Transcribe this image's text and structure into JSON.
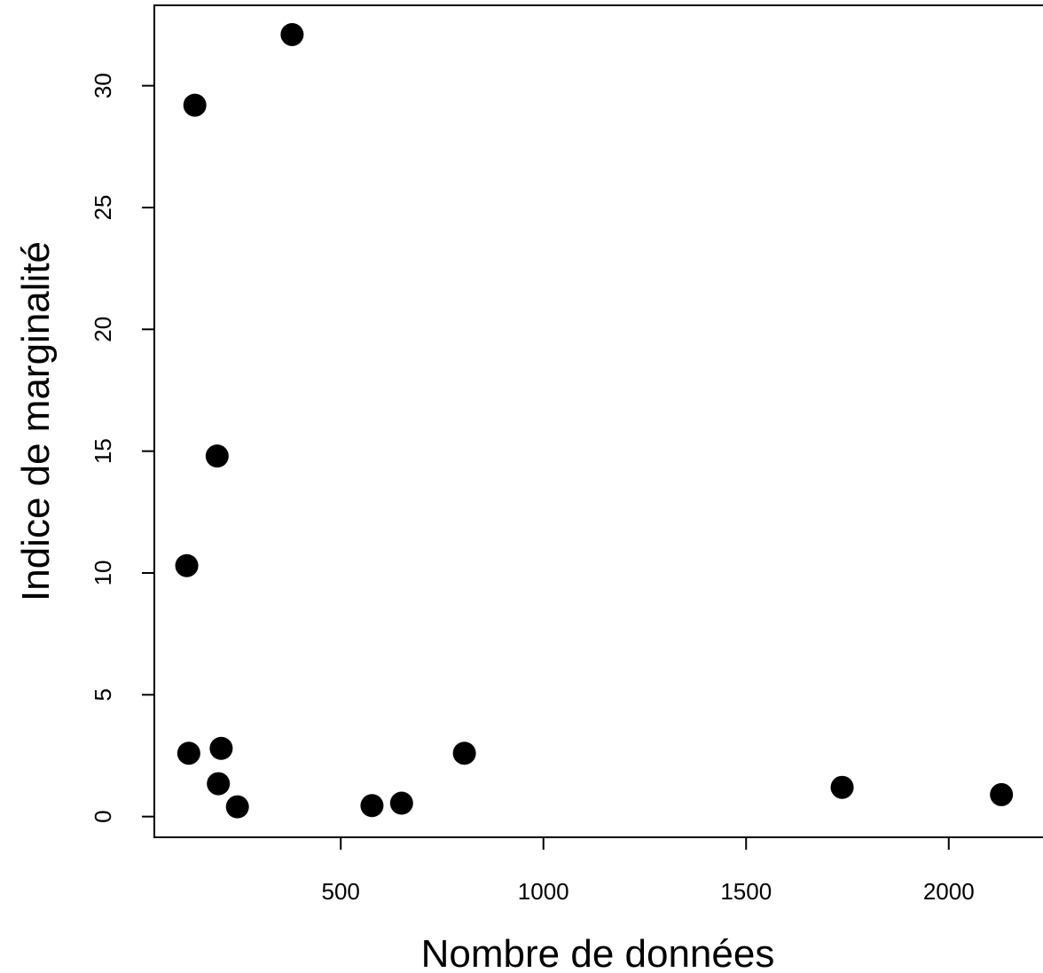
{
  "chart_data": {
    "type": "scatter",
    "title": "",
    "xlabel": "Nombre de données",
    "ylabel": "Indice de marginalité",
    "xlim": [
      40,
      2250
    ],
    "ylim": [
      -0.85,
      33.3
    ],
    "xticks": [
      500,
      1000,
      1500,
      2000
    ],
    "yticks": [
      0,
      5,
      10,
      15,
      20,
      25,
      30
    ],
    "grid": false,
    "legend": "none",
    "marker": "filled-circle",
    "point_color": "#000000",
    "series": [
      {
        "x": [
          380,
          140,
          195,
          120,
          125,
          205,
          198,
          245,
          577,
          650,
          805,
          1737,
          2130
        ],
        "y": [
          32.1,
          29.2,
          14.8,
          10.3,
          2.6,
          2.8,
          1.35,
          0.4,
          0.45,
          0.55,
          2.6,
          1.2,
          0.9
        ]
      }
    ]
  }
}
